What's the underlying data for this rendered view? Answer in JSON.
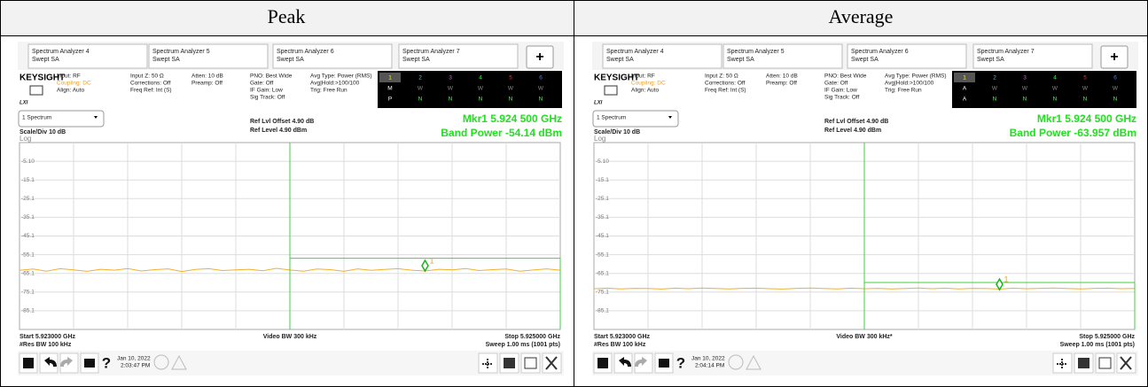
{
  "table": {
    "headers": [
      "Peak",
      "Average"
    ]
  },
  "panels": [
    {
      "tabs": [
        {
          "name": "Spectrum Analyzer 4",
          "mode": "Swept SA"
        },
        {
          "name": "Spectrum Analyzer 5",
          "mode": "Swept SA"
        },
        {
          "name": "Spectrum Analyzer 6",
          "mode": "Swept SA"
        },
        {
          "name": "Spectrum Analyzer 7",
          "mode": "Swept SA"
        }
      ],
      "add_tab": "+",
      "brand": "KEYSIGHT",
      "lxi": "LXI",
      "settings": [
        [
          "Input: RF",
          "Coupling: DC",
          "Align: Auto"
        ],
        [
          "Input Z: 50 Ω",
          "Corrections: Off",
          "Freq Ref: Int (S)"
        ],
        [
          "Atten: 10 dB",
          "Preamp: Off"
        ],
        [
          "PNO: Best Wide",
          "Gate: Off",
          "IF Gain: Low",
          "Sig Track: Off"
        ],
        [
          "Avg Type: Power (RMS)",
          "Avg|Hold:>100/100",
          "Trig: Free Run"
        ]
      ],
      "traces": [
        [
          "1",
          "2",
          "3",
          "4",
          "5",
          "6"
        ],
        [
          "M",
          "W",
          "W",
          "W",
          "W",
          "W"
        ],
        [
          "P",
          "N",
          "N",
          "N",
          "N",
          "N"
        ]
      ],
      "view": "1 Spectrum",
      "ref_offset": "Ref Lvl Offset 4.90 dB",
      "ref_level": "Ref Level 4.90 dBm",
      "scale": "Scale/Div 10 dB",
      "log": "Log",
      "marker_readout": "Mkr1  5.924 500 GHz",
      "band_power": "Band Power  -54.14 dBm",
      "y_labels": [
        "-5.10",
        "-15.1",
        "-25.1",
        "-35.1",
        "-45.1",
        "-55.1",
        "-65.1",
        "-75.1",
        "-85.1"
      ],
      "start": "Start 5.923000 GHz",
      "res_bw": "#Res BW 100 kHz",
      "video_bw": "Video BW 300 kHz",
      "stop": "Stop 5.925000 GHz",
      "sweep": "Sweep 1.00 ms (1001 pts)",
      "help": "?",
      "date": "Jan 10, 2022",
      "time": "2:03:47 PM",
      "marker_label": "1",
      "ylim": [
        -95.1,
        4.9
      ],
      "xlim": [
        5.923,
        5.925
      ],
      "band_region": [
        5.924,
        5.925
      ],
      "band_level": -57,
      "marker": {
        "x": 5.9245,
        "y": -61
      },
      "trace": [
        -63.5,
        -62.8,
        -63.9,
        -62.6,
        -63.2,
        -64.0,
        -62.9,
        -63.4,
        -62.5,
        -63.8,
        -63.1,
        -62.7,
        -64.1,
        -63.0,
        -62.6,
        -63.6,
        -63.2,
        -62.9,
        -63.7,
        -62.4,
        -63.3,
        -63.9,
        -62.8,
        -63.1,
        -64.0,
        -62.7,
        -63.5,
        -63.0,
        -62.6,
        -63.4,
        -63.8,
        -62.9,
        -63.2,
        -62.5,
        -63.6,
        -63.1,
        -62.8,
        -63.9,
        -63.3,
        -62.7,
        -63.4
      ]
    },
    {
      "tabs": [
        {
          "name": "Spectrum Analyzer 4",
          "mode": "Swept SA"
        },
        {
          "name": "Spectrum Analyzer 5",
          "mode": "Swept SA"
        },
        {
          "name": "Spectrum Analyzer 6",
          "mode": "Swept SA"
        },
        {
          "name": "Spectrum Analyzer 7",
          "mode": "Swept SA"
        }
      ],
      "add_tab": "+",
      "brand": "KEYSIGHT",
      "lxi": "LXI",
      "settings": [
        [
          "Input: RF",
          "Coupling: DC",
          "Align: Auto"
        ],
        [
          "Input Z: 50 Ω",
          "Corrections: Off",
          "Freq Ref: Int (S)"
        ],
        [
          "Atten: 10 dB",
          "Preamp: Off"
        ],
        [
          "PNO: Best Wide",
          "Gate: Off",
          "IF Gain: Low",
          "Sig Track: Off"
        ],
        [
          "Avg Type: Power (RMS)",
          "Avg|Hold:>100/100",
          "Trig: Free Run"
        ]
      ],
      "traces": [
        [
          "1",
          "2",
          "3",
          "4",
          "5",
          "6"
        ],
        [
          "A",
          "W",
          "W",
          "W",
          "W",
          "W"
        ],
        [
          "A",
          "N",
          "N",
          "N",
          "N",
          "N"
        ]
      ],
      "view": "1 Spectrum",
      "ref_offset": "Ref Lvl Offset 4.90 dB",
      "ref_level": "Ref Level 4.90 dBm",
      "scale": "Scale/Div 10 dB",
      "log": "Log",
      "marker_readout": "Mkr1  5.924 500 GHz",
      "band_power": "Band Power  -63.957 dBm",
      "y_labels": [
        "-5.10",
        "-15.1",
        "-25.1",
        "-35.1",
        "-45.1",
        "-55.1",
        "-65.1",
        "-75.1",
        "-85.1"
      ],
      "start": "Start 5.923000 GHz",
      "res_bw": "#Res BW 100 kHz",
      "video_bw": "Video BW 300 kHz*",
      "stop": "Stop 5.925000 GHz",
      "sweep": "Sweep 1.00 ms (1001 pts)",
      "help": "?",
      "date": "Jan 10, 2022",
      "time": "2:04:14 PM",
      "marker_label": "1",
      "ylim": [
        -95.1,
        4.9
      ],
      "xlim": [
        5.923,
        5.925
      ],
      "band_region": [
        5.924,
        5.925
      ],
      "band_level": -70,
      "marker": {
        "x": 5.9245,
        "y": -71
      },
      "trace": [
        -73.3,
        -73.0,
        -73.4,
        -73.1,
        -73.2,
        -73.5,
        -73.0,
        -73.3,
        -72.9,
        -73.2,
        -73.4,
        -73.1,
        -73.0,
        -73.3,
        -73.5,
        -73.1,
        -72.9,
        -73.2,
        -73.4,
        -73.0,
        -73.3,
        -73.1,
        -73.4,
        -73.2,
        -72.9,
        -73.3,
        -73.0,
        -73.4,
        -73.1,
        -73.2,
        -73.5,
        -73.0,
        -73.3,
        -73.1,
        -72.9,
        -73.2,
        -73.4,
        -73.1,
        -73.0,
        -73.3,
        -73.2
      ]
    }
  ]
}
